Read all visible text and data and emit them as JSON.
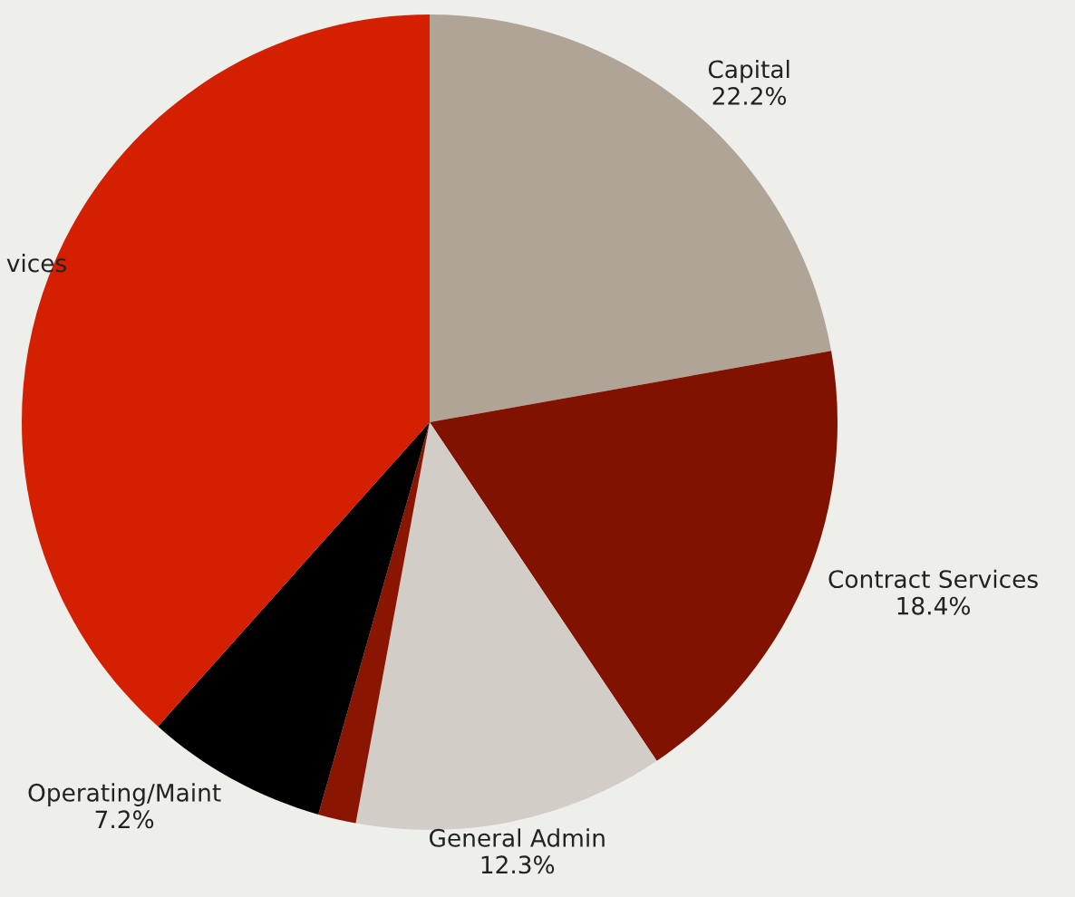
{
  "chart_data": {
    "type": "pie",
    "categories": [
      "Capital",
      "Contract Services",
      "General Admin",
      null,
      "Operating/Maint",
      "vices"
    ],
    "values": [
      22.2,
      18.4,
      12.3,
      1.5,
      7.2,
      38.4
    ],
    "value_labels": [
      "22.2%",
      "18.4%",
      "12.3%",
      null,
      "7.2%",
      null
    ],
    "colors": [
      "#b0a497",
      "#821200",
      "#d3cdc8",
      "#8a1500",
      "#000000",
      "#d42000"
    ],
    "legend": false
  }
}
